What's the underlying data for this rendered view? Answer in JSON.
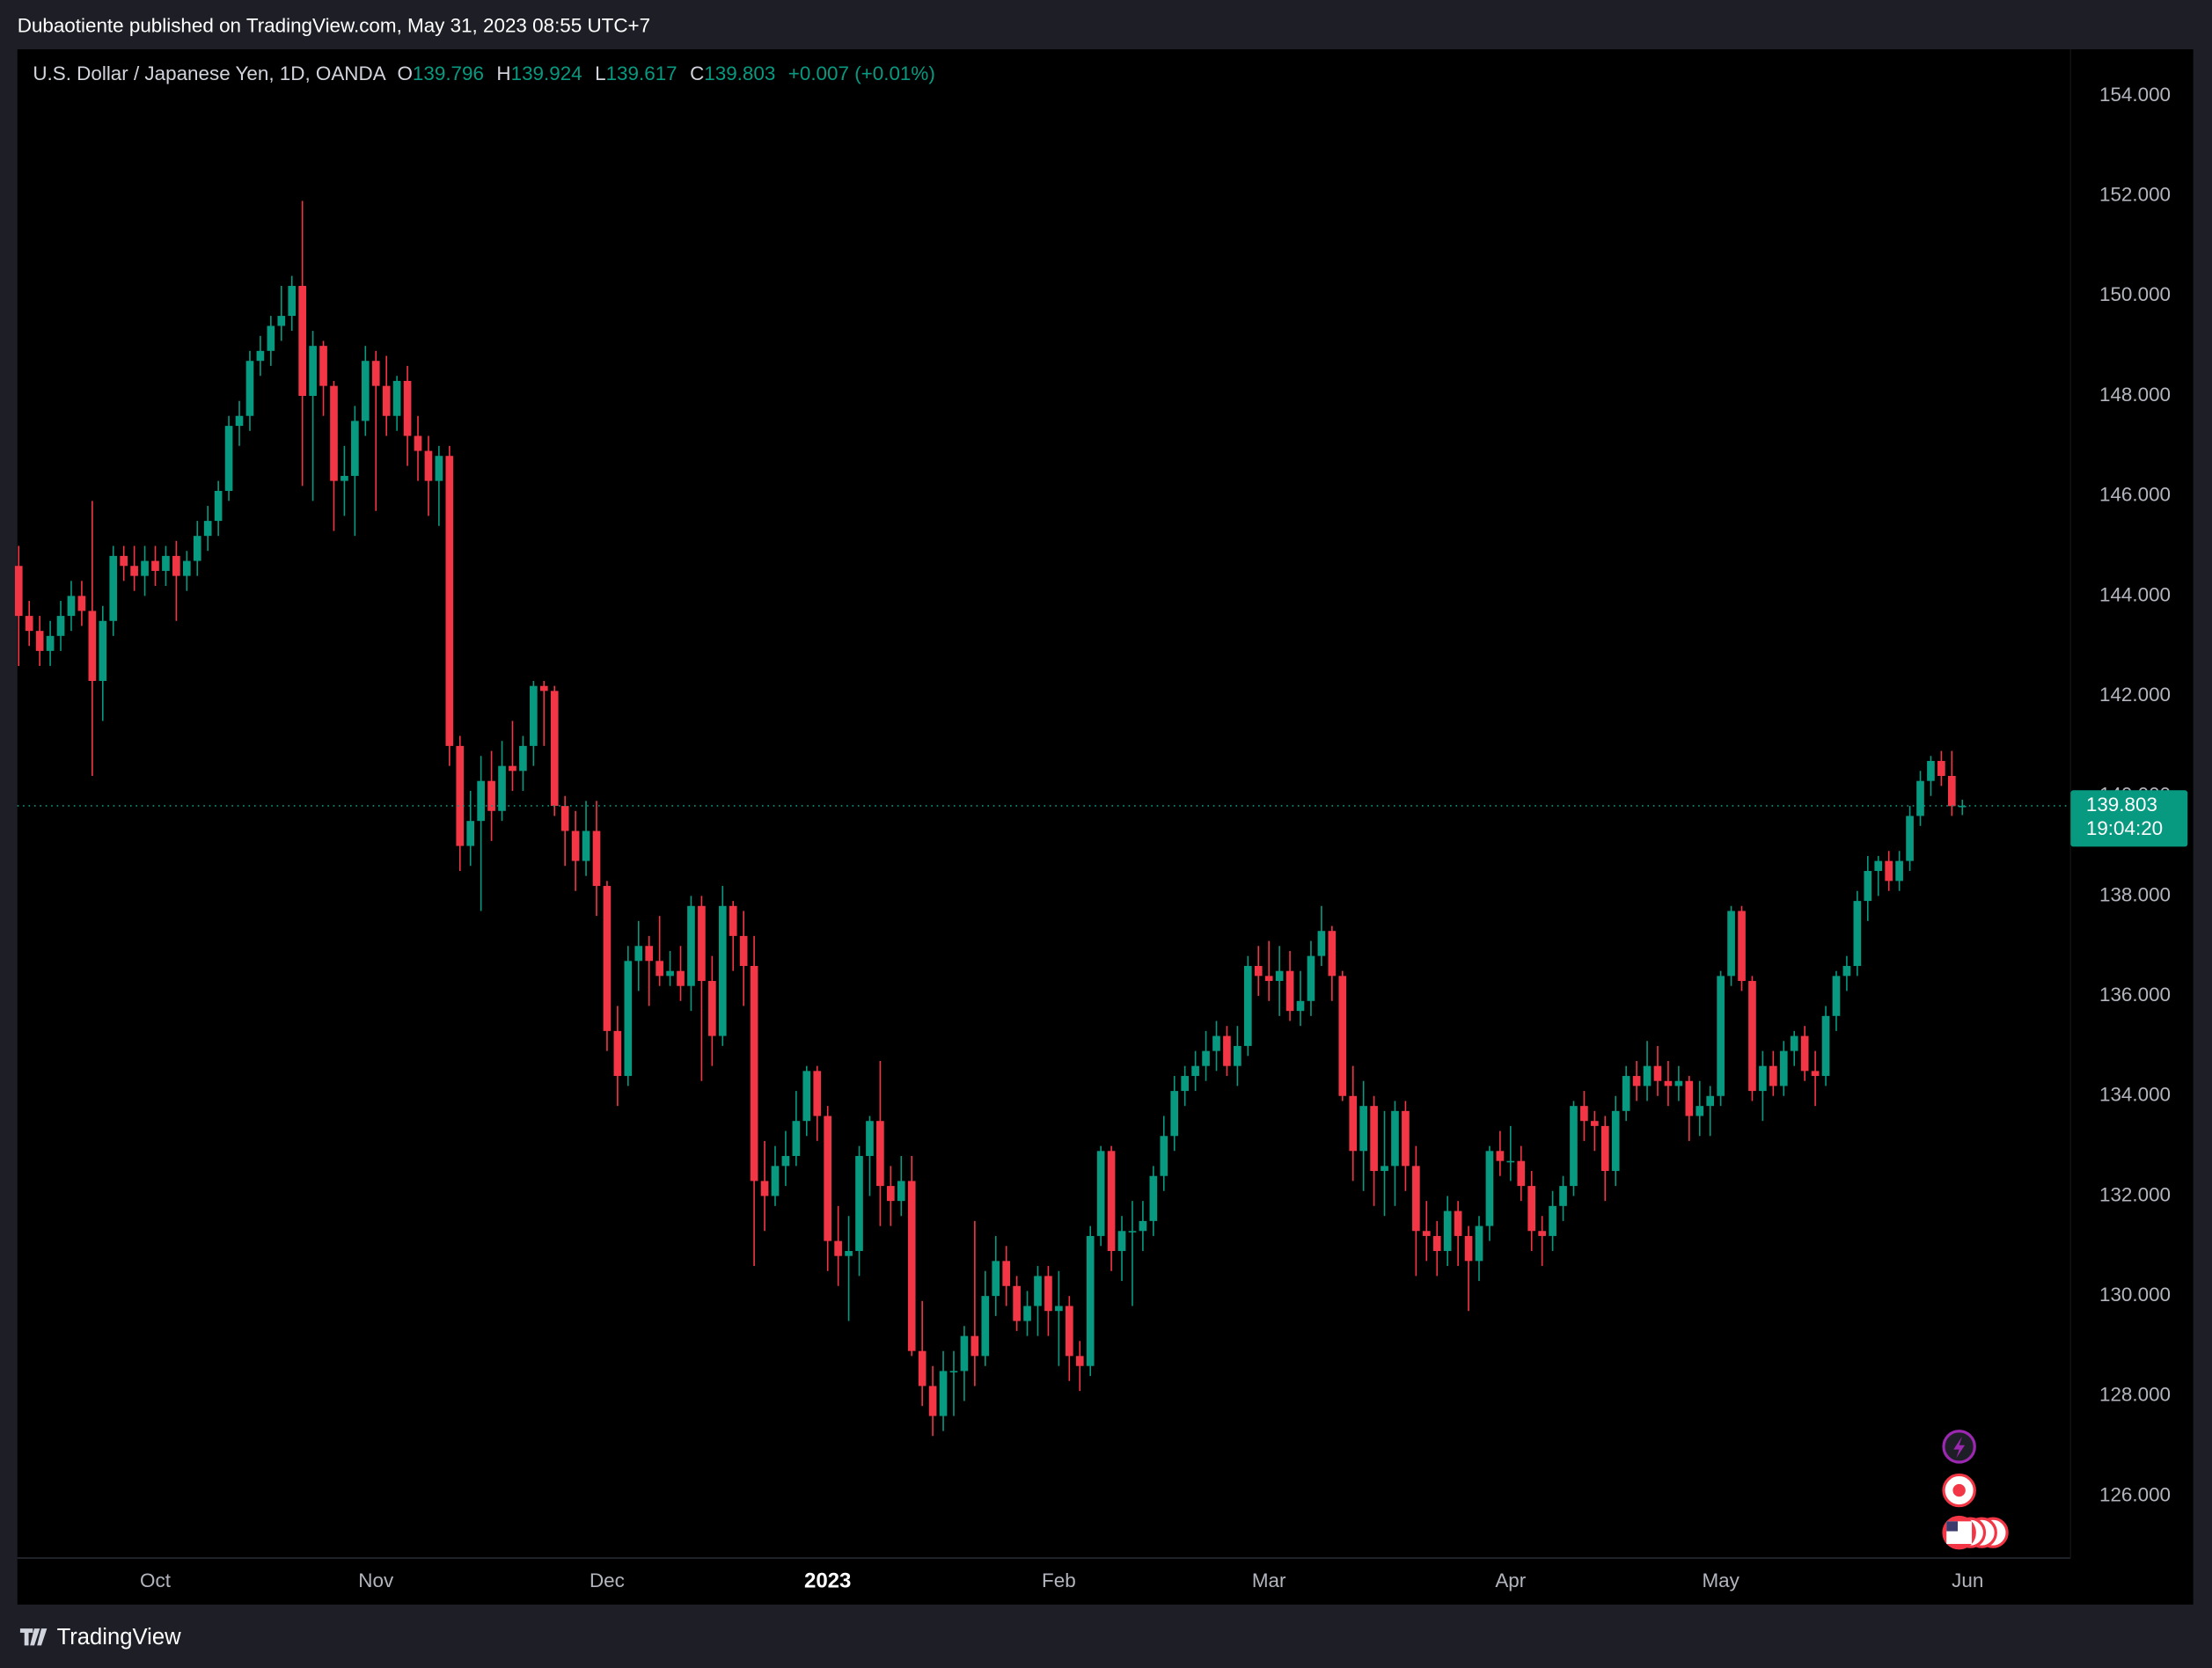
{
  "header": {
    "text": "Dubaotiente published on TradingView.com, May 31, 2023 08:55 UTC+7"
  },
  "chart_data": {
    "type": "candlestick",
    "symbol": "U.S. Dollar / Japanese Yen, 1D, OANDA",
    "ohlc_letters": [
      "O",
      "H",
      "L",
      "C"
    ],
    "change": "+0.007 (+0.01%)",
    "countdown": "19:04:20",
    "up_color": "#089981",
    "down_color": "#f23645",
    "grid": false,
    "last_price_line": true,
    "xlim": [
      -0.13,
      195.3
    ],
    "ylim": [
      124.76,
      154.93
    ],
    "yticks": [
      {
        "value": 126,
        "label": "126.000"
      },
      {
        "value": 128,
        "label": "128.000"
      },
      {
        "value": 130,
        "label": "130.000"
      },
      {
        "value": 132,
        "label": "132.000"
      },
      {
        "value": 134,
        "label": "134.000"
      },
      {
        "value": 136,
        "label": "136.000"
      },
      {
        "value": 138,
        "label": "138.000"
      },
      {
        "value": 140,
        "label": "140.000"
      },
      {
        "value": 142,
        "label": "142.000"
      },
      {
        "value": 144,
        "label": "144.000"
      },
      {
        "value": 146,
        "label": "146.000"
      },
      {
        "value": 148,
        "label": "148.000"
      },
      {
        "value": 150,
        "label": "150.000"
      },
      {
        "value": 152,
        "label": "152.000"
      },
      {
        "value": 154,
        "label": "154.000"
      }
    ],
    "xticks": [
      {
        "value": 13,
        "label": "Oct"
      },
      {
        "value": 34,
        "label": "Nov"
      },
      {
        "value": 56,
        "label": "Dec"
      },
      {
        "value": 77,
        "label": "2023"
      },
      {
        "value": 99,
        "label": "Feb"
      },
      {
        "value": 119,
        "label": "Mar"
      },
      {
        "value": 142,
        "label": "Apr"
      },
      {
        "value": 162,
        "label": "May"
      },
      {
        "value": 185.5,
        "label": "Jun"
      }
    ],
    "ohlc": [
      [
        144.6,
        145.0,
        142.6,
        143.6
      ],
      [
        143.6,
        143.9,
        143.0,
        143.3
      ],
      [
        143.3,
        143.6,
        142.6,
        142.9
      ],
      [
        142.9,
        143.5,
        142.6,
        143.2
      ],
      [
        143.2,
        143.9,
        142.9,
        143.6
      ],
      [
        143.6,
        144.3,
        143.3,
        144.0
      ],
      [
        144.0,
        144.3,
        143.4,
        143.7
      ],
      [
        143.7,
        145.9,
        140.4,
        142.3
      ],
      [
        142.3,
        143.8,
        141.5,
        143.5
      ],
      [
        143.5,
        145.0,
        143.2,
        144.8
      ],
      [
        144.8,
        145.0,
        144.3,
        144.6
      ],
      [
        144.6,
        145.0,
        144.1,
        144.4
      ],
      [
        144.4,
        145.0,
        144.0,
        144.7
      ],
      [
        144.7,
        145.0,
        144.2,
        144.5
      ],
      [
        144.5,
        145.0,
        144.2,
        144.8
      ],
      [
        144.8,
        145.1,
        143.5,
        144.4
      ],
      [
        144.4,
        144.9,
        144.1,
        144.7
      ],
      [
        144.7,
        145.5,
        144.4,
        145.2
      ],
      [
        145.2,
        145.8,
        144.9,
        145.5
      ],
      [
        145.5,
        146.3,
        145.2,
        146.1
      ],
      [
        146.1,
        147.6,
        145.9,
        147.4
      ],
      [
        147.4,
        147.9,
        147.0,
        147.6
      ],
      [
        147.6,
        148.9,
        147.3,
        148.7
      ],
      [
        148.7,
        149.2,
        148.4,
        148.9
      ],
      [
        148.9,
        149.6,
        148.6,
        149.4
      ],
      [
        149.4,
        150.2,
        149.1,
        149.6
      ],
      [
        149.6,
        150.4,
        149.3,
        150.2
      ],
      [
        150.2,
        151.9,
        146.2,
        148.0
      ],
      [
        148.0,
        149.3,
        145.9,
        149.0
      ],
      [
        149.0,
        149.1,
        147.6,
        148.2
      ],
      [
        148.2,
        148.3,
        145.3,
        146.3
      ],
      [
        146.3,
        147.0,
        145.6,
        146.4
      ],
      [
        146.4,
        147.8,
        145.2,
        147.5
      ],
      [
        147.5,
        149.0,
        147.2,
        148.7
      ],
      [
        148.7,
        148.9,
        145.7,
        148.2
      ],
      [
        148.2,
        148.8,
        147.2,
        147.6
      ],
      [
        147.6,
        148.4,
        147.3,
        148.3
      ],
      [
        148.3,
        148.6,
        146.6,
        147.2
      ],
      [
        147.2,
        147.6,
        146.3,
        146.9
      ],
      [
        146.9,
        147.2,
        145.6,
        146.3
      ],
      [
        146.3,
        147.0,
        145.4,
        146.8
      ],
      [
        146.8,
        147.0,
        140.6,
        141.0
      ],
      [
        141.0,
        141.2,
        138.5,
        139.0
      ],
      [
        139.0,
        140.1,
        138.6,
        139.5
      ],
      [
        139.5,
        140.8,
        137.7,
        140.3
      ],
      [
        140.3,
        140.9,
        139.1,
        139.7
      ],
      [
        139.7,
        141.1,
        139.5,
        140.6
      ],
      [
        140.6,
        141.5,
        140.1,
        140.5
      ],
      [
        140.5,
        141.2,
        140.1,
        141.0
      ],
      [
        141.0,
        142.3,
        140.6,
        142.2
      ],
      [
        142.2,
        142.3,
        141.0,
        142.1
      ],
      [
        142.1,
        142.2,
        139.6,
        139.8
      ],
      [
        139.8,
        140.0,
        138.6,
        139.3
      ],
      [
        139.3,
        139.7,
        138.1,
        138.7
      ],
      [
        138.7,
        139.9,
        138.4,
        139.3
      ],
      [
        139.3,
        139.9,
        137.6,
        138.2
      ],
      [
        138.2,
        138.3,
        134.9,
        135.3
      ],
      [
        135.3,
        135.8,
        133.8,
        134.4
      ],
      [
        134.4,
        137.0,
        134.2,
        136.7
      ],
      [
        136.7,
        137.5,
        136.1,
        137.0
      ],
      [
        137.0,
        137.2,
        135.8,
        136.7
      ],
      [
        136.7,
        137.6,
        136.2,
        136.4
      ],
      [
        136.4,
        136.9,
        136.2,
        136.5
      ],
      [
        136.5,
        137.0,
        135.9,
        136.2
      ],
      [
        136.2,
        138.0,
        135.7,
        137.8
      ],
      [
        137.8,
        138.0,
        134.3,
        136.3
      ],
      [
        136.3,
        136.8,
        134.6,
        135.2
      ],
      [
        135.2,
        138.2,
        135.0,
        137.8
      ],
      [
        137.8,
        137.9,
        136.5,
        137.2
      ],
      [
        137.2,
        137.7,
        135.8,
        136.6
      ],
      [
        136.6,
        137.2,
        130.6,
        132.3
      ],
      [
        132.3,
        133.1,
        131.3,
        132.0
      ],
      [
        132.0,
        133.0,
        131.8,
        132.6
      ],
      [
        132.6,
        133.3,
        132.2,
        132.8
      ],
      [
        132.8,
        134.1,
        132.6,
        133.5
      ],
      [
        133.5,
        134.6,
        133.2,
        134.5
      ],
      [
        134.5,
        134.6,
        133.1,
        133.6
      ],
      [
        133.6,
        133.8,
        130.5,
        131.1
      ],
      [
        131.1,
        131.8,
        130.2,
        130.8
      ],
      [
        130.8,
        131.6,
        129.5,
        130.9
      ],
      [
        130.9,
        133.0,
        130.4,
        132.8
      ],
      [
        132.8,
        133.6,
        132.0,
        133.5
      ],
      [
        133.5,
        134.7,
        131.4,
        132.2
      ],
      [
        132.2,
        132.6,
        131.4,
        131.9
      ],
      [
        131.9,
        132.8,
        131.6,
        132.3
      ],
      [
        132.3,
        132.8,
        128.8,
        128.9
      ],
      [
        128.9,
        129.9,
        127.8,
        128.2
      ],
      [
        128.2,
        128.6,
        127.2,
        127.6
      ],
      [
        127.6,
        128.9,
        127.3,
        128.5
      ],
      [
        128.5,
        128.9,
        127.6,
        128.5
      ],
      [
        128.5,
        129.4,
        127.9,
        129.2
      ],
      [
        129.2,
        131.5,
        128.2,
        128.8
      ],
      [
        128.8,
        130.5,
        128.6,
        130.0
      ],
      [
        130.0,
        131.2,
        129.6,
        130.7
      ],
      [
        130.7,
        131.0,
        129.8,
        130.2
      ],
      [
        130.2,
        130.4,
        129.3,
        129.5
      ],
      [
        129.5,
        130.1,
        129.2,
        129.8
      ],
      [
        129.8,
        130.6,
        129.2,
        130.4
      ],
      [
        130.4,
        130.6,
        129.2,
        129.7
      ],
      [
        129.7,
        130.5,
        128.6,
        129.8
      ],
      [
        129.8,
        130.0,
        128.3,
        128.8
      ],
      [
        128.8,
        129.1,
        128.1,
        128.6
      ],
      [
        128.6,
        131.4,
        128.4,
        131.2
      ],
      [
        131.2,
        133.0,
        131.0,
        132.9
      ],
      [
        132.9,
        133.0,
        130.5,
        130.9
      ],
      [
        130.9,
        131.6,
        130.3,
        131.3
      ],
      [
        131.3,
        131.9,
        129.8,
        131.3
      ],
      [
        131.3,
        131.9,
        130.9,
        131.5
      ],
      [
        131.5,
        132.6,
        131.2,
        132.4
      ],
      [
        132.4,
        133.6,
        132.1,
        133.2
      ],
      [
        133.2,
        134.4,
        132.9,
        134.1
      ],
      [
        134.1,
        134.6,
        133.8,
        134.4
      ],
      [
        134.4,
        134.9,
        134.1,
        134.6
      ],
      [
        134.6,
        135.3,
        134.3,
        134.9
      ],
      [
        134.9,
        135.5,
        134.5,
        135.2
      ],
      [
        135.2,
        135.4,
        134.4,
        134.6
      ],
      [
        134.6,
        135.4,
        134.2,
        135.0
      ],
      [
        135.0,
        136.8,
        134.8,
        136.6
      ],
      [
        136.6,
        137.0,
        136.0,
        136.4
      ],
      [
        136.4,
        137.1,
        135.9,
        136.3
      ],
      [
        136.3,
        137.0,
        135.6,
        136.5
      ],
      [
        136.5,
        136.9,
        135.5,
        135.7
      ],
      [
        135.7,
        136.5,
        135.4,
        135.9
      ],
      [
        135.9,
        137.1,
        135.6,
        136.8
      ],
      [
        136.8,
        137.8,
        136.6,
        137.3
      ],
      [
        137.3,
        137.4,
        135.9,
        136.4
      ],
      [
        136.4,
        136.5,
        133.9,
        134.0
      ],
      [
        134.0,
        134.6,
        132.3,
        132.9
      ],
      [
        132.9,
        134.3,
        132.1,
        133.8
      ],
      [
        133.8,
        134.0,
        131.8,
        132.5
      ],
      [
        132.5,
        133.7,
        131.6,
        132.6
      ],
      [
        132.6,
        133.9,
        131.8,
        133.7
      ],
      [
        133.7,
        133.9,
        132.1,
        132.6
      ],
      [
        132.6,
        133.0,
        130.4,
        131.3
      ],
      [
        131.3,
        131.9,
        130.7,
        131.2
      ],
      [
        131.2,
        131.5,
        130.4,
        130.9
      ],
      [
        130.9,
        132.0,
        130.6,
        131.7
      ],
      [
        131.7,
        131.9,
        130.6,
        131.2
      ],
      [
        131.2,
        131.4,
        129.7,
        130.7
      ],
      [
        130.7,
        131.6,
        130.3,
        131.4
      ],
      [
        131.4,
        133.0,
        131.1,
        132.9
      ],
      [
        132.9,
        133.3,
        132.4,
        132.7
      ],
      [
        132.7,
        133.4,
        132.3,
        132.7
      ],
      [
        132.7,
        133.0,
        131.9,
        132.2
      ],
      [
        132.2,
        132.5,
        130.9,
        131.3
      ],
      [
        131.3,
        131.6,
        130.6,
        131.2
      ],
      [
        131.2,
        132.1,
        130.9,
        131.8
      ],
      [
        131.8,
        132.4,
        131.5,
        132.2
      ],
      [
        132.2,
        133.9,
        132.0,
        133.8
      ],
      [
        133.8,
        134.1,
        133.1,
        133.5
      ],
      [
        133.5,
        133.7,
        132.9,
        133.4
      ],
      [
        133.4,
        133.6,
        131.9,
        132.5
      ],
      [
        132.5,
        134.0,
        132.2,
        133.7
      ],
      [
        133.7,
        134.6,
        133.5,
        134.4
      ],
      [
        134.4,
        134.7,
        133.9,
        134.2
      ],
      [
        134.2,
        135.1,
        133.9,
        134.6
      ],
      [
        134.6,
        135.0,
        134.0,
        134.3
      ],
      [
        134.3,
        134.7,
        133.8,
        134.2
      ],
      [
        134.2,
        134.6,
        133.9,
        134.3
      ],
      [
        134.3,
        134.4,
        133.1,
        133.6
      ],
      [
        133.6,
        134.3,
        133.2,
        133.8
      ],
      [
        133.8,
        134.2,
        133.2,
        134.0
      ],
      [
        134.0,
        136.5,
        133.8,
        136.4
      ],
      [
        136.4,
        137.8,
        136.2,
        137.7
      ],
      [
        137.7,
        137.8,
        136.1,
        136.3
      ],
      [
        136.3,
        136.4,
        133.9,
        134.1
      ],
      [
        134.1,
        134.9,
        133.5,
        134.6
      ],
      [
        134.6,
        134.9,
        134.0,
        134.2
      ],
      [
        134.2,
        135.1,
        134.0,
        134.9
      ],
      [
        134.9,
        135.3,
        134.6,
        135.2
      ],
      [
        135.2,
        135.4,
        134.3,
        134.5
      ],
      [
        134.5,
        134.9,
        133.8,
        134.4
      ],
      [
        134.4,
        135.8,
        134.2,
        135.6
      ],
      [
        135.6,
        136.5,
        135.3,
        136.4
      ],
      [
        136.4,
        136.8,
        136.1,
        136.6
      ],
      [
        136.6,
        138.1,
        136.4,
        137.9
      ],
      [
        137.9,
        138.8,
        137.5,
        138.5
      ],
      [
        138.5,
        138.8,
        138.0,
        138.7
      ],
      [
        138.7,
        138.9,
        138.1,
        138.3
      ],
      [
        138.3,
        138.9,
        138.1,
        138.7
      ],
      [
        138.7,
        139.8,
        138.5,
        139.6
      ],
      [
        139.6,
        140.5,
        139.4,
        140.3
      ],
      [
        140.3,
        140.8,
        140.0,
        140.7
      ],
      [
        140.7,
        140.9,
        140.2,
        140.4
      ],
      [
        140.4,
        140.9,
        139.6,
        139.796
      ],
      [
        139.796,
        139.924,
        139.617,
        139.803
      ]
    ]
  },
  "footer": {
    "brand": "TradingView"
  }
}
